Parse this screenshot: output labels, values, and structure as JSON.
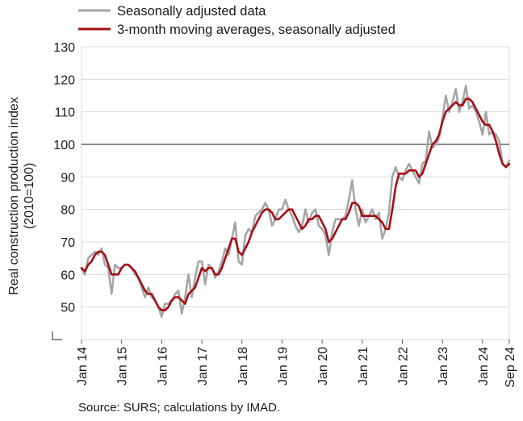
{
  "chart_data": {
    "type": "line",
    "ylabel": "Real construction production index (2010=100)",
    "ylabel_lines": [
      "Real construction production index",
      "(2010=100)"
    ],
    "xlabel": "",
    "ylim": [
      40,
      130
    ],
    "yticks": [
      50,
      60,
      70,
      80,
      90,
      100,
      110,
      120,
      130
    ],
    "ytick_labels": [
      "50",
      "60",
      "70",
      "80",
      "90",
      "100",
      "110",
      "120",
      "130"
    ],
    "xtick_labels": [
      "Jan 14",
      "Jan 15",
      "Jan 16",
      "Jan 17",
      "Jan 18",
      "Jan 19",
      "Jan 20",
      "Jan 21",
      "Jan 22",
      "Jan 23",
      "Jan 24",
      "Sep 24"
    ],
    "xtick_months": [
      "2014-01",
      "2015-01",
      "2016-01",
      "2017-01",
      "2018-01",
      "2019-01",
      "2020-01",
      "2021-01",
      "2022-01",
      "2023-01",
      "2024-01",
      "2024-09"
    ],
    "x_start": "2014-01",
    "x_end": "2024-09",
    "reference_line": 100,
    "axis_break": true,
    "grid": "horizontal",
    "legend_position": "top",
    "series": [
      {
        "name": "Seasonally adjusted data",
        "color": "#a6a6a6",
        "values": [
          62,
          60,
          65,
          66,
          67,
          66,
          68,
          63,
          62,
          54,
          63,
          62,
          62,
          63,
          63,
          62,
          60,
          59,
          56,
          53,
          56,
          53,
          52,
          50,
          47,
          51,
          51,
          52,
          54,
          55,
          48,
          53,
          60,
          53,
          59,
          64,
          64,
          57,
          63,
          62,
          59,
          61,
          64,
          68,
          66,
          71,
          76,
          64,
          63,
          72,
          74,
          73,
          78,
          79,
          80,
          82,
          80,
          75,
          77,
          80,
          80,
          83,
          80,
          78,
          75,
          73,
          75,
          80,
          76,
          79,
          80,
          75,
          74,
          72,
          66,
          73,
          77,
          77,
          77,
          78,
          83,
          89,
          80,
          75,
          80,
          76,
          78,
          80,
          77,
          79,
          71,
          74,
          79,
          90,
          93,
          90,
          89,
          92,
          94,
          92,
          90,
          88,
          94,
          95,
          104,
          99,
          100,
          102,
          108,
          115,
          110,
          113,
          117,
          110,
          113,
          118,
          111,
          112,
          110,
          107,
          103,
          110,
          103,
          104,
          103,
          101,
          94,
          93,
          95
        ],
        "values_note": "monthly values Jan 2014 to Sep 2024"
      },
      {
        "name": "3-month moving averages, seasonally adjusted",
        "color": "#a50f15",
        "values": [
          62,
          61,
          63,
          64,
          66,
          67,
          67,
          66,
          63,
          60,
          60,
          60,
          62,
          63,
          63,
          62,
          61,
          59,
          57,
          55,
          54,
          54,
          52,
          50,
          49,
          49,
          50,
          52,
          53,
          53,
          52,
          51,
          54,
          55,
          56,
          59,
          62,
          61,
          62,
          62,
          60,
          60,
          62,
          65,
          68,
          71,
          71,
          67,
          66,
          68,
          70,
          73,
          75,
          77,
          79,
          80,
          80,
          79,
          77,
          77,
          78,
          79,
          80,
          80,
          78,
          76,
          74,
          75,
          77,
          77,
          78,
          78,
          76,
          74,
          70,
          71,
          73,
          75,
          77,
          77,
          79,
          82,
          82,
          81,
          78,
          78,
          78,
          78,
          78,
          77,
          76,
          74,
          74,
          80,
          87,
          91,
          91,
          91,
          92,
          92,
          92,
          90,
          91,
          94,
          97,
          100,
          101,
          103,
          107,
          110,
          111,
          112,
          113,
          112,
          112,
          114,
          114,
          113,
          111,
          109,
          107,
          106,
          106,
          104,
          101,
          97,
          94,
          93,
          94
        ],
        "values_note": "monthly values Jan 2014 to Sep 2024"
      }
    ]
  },
  "source": "Source: SURS; calculations by IMAD."
}
